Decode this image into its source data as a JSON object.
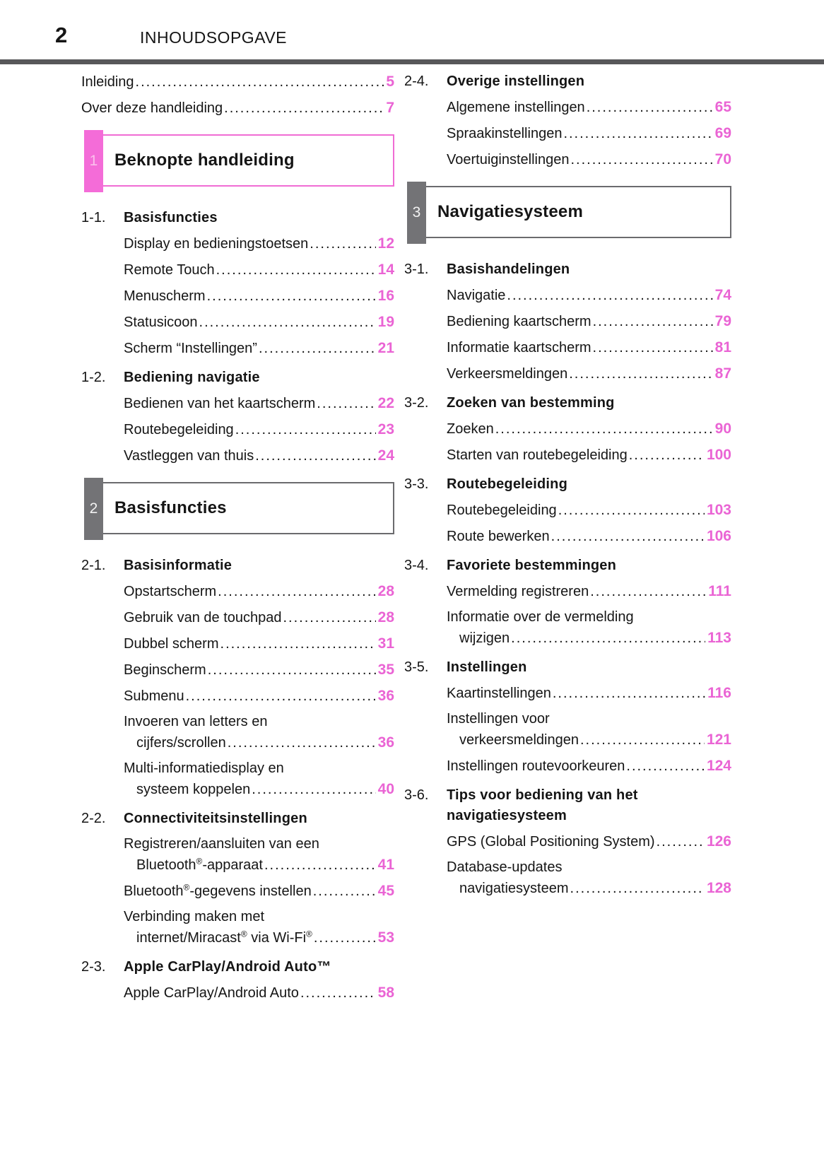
{
  "header": {
    "page_number": "2",
    "title": "INHOUDSOPGAVE"
  },
  "colors": {
    "pink_accent": "#f06cd4",
    "pink_page_number": "#ea64d4",
    "pink_tab_bg": "#f46cd8",
    "pink_tab_number": "#fbc0ec",
    "gray_tab_bg": "#737376",
    "gray_box_border": "#6b6b6e",
    "header_rule": "#58585a",
    "text": "#151515"
  },
  "toc": {
    "left": [
      {
        "kind": "entry",
        "indent": 0,
        "lines": [
          "Inleiding"
        ],
        "page": "5"
      },
      {
        "kind": "entry",
        "indent": 0,
        "lines": [
          "Over deze handleiding"
        ],
        "page": "7"
      },
      {
        "kind": "section",
        "num": "1",
        "title": "Beknopte handleiding",
        "variant": "pink"
      },
      {
        "kind": "sub",
        "num": "1-1.",
        "title": "Basisfuncties"
      },
      {
        "kind": "entry",
        "lines": [
          "Display en bedieningstoetsen"
        ],
        "page": "12"
      },
      {
        "kind": "entry",
        "lines": [
          "Remote Touch"
        ],
        "page": "14"
      },
      {
        "kind": "entry",
        "lines": [
          "Menuscherm"
        ],
        "page": "16"
      },
      {
        "kind": "entry",
        "lines": [
          "Statusicoon"
        ],
        "page": "19"
      },
      {
        "kind": "entry",
        "lines": [
          "Scherm “Instellingen”"
        ],
        "page": "21"
      },
      {
        "kind": "sub",
        "num": "1-2.",
        "title": "Bediening navigatie"
      },
      {
        "kind": "entry",
        "lines": [
          "Bedienen van het kaartscherm"
        ],
        "page": "22"
      },
      {
        "kind": "entry",
        "lines": [
          "Routebegeleiding"
        ],
        "page": "23"
      },
      {
        "kind": "entry",
        "lines": [
          "Vastleggen van thuis"
        ],
        "page": "24"
      },
      {
        "kind": "section",
        "num": "2",
        "title": "Basisfuncties",
        "variant": "gray"
      },
      {
        "kind": "sub",
        "num": "2-1.",
        "title": "Basisinformatie"
      },
      {
        "kind": "entry",
        "lines": [
          "Opstartscherm"
        ],
        "page": "28"
      },
      {
        "kind": "entry",
        "lines": [
          "Gebruik van de touchpad"
        ],
        "page": "28"
      },
      {
        "kind": "entry",
        "lines": [
          "Dubbel scherm"
        ],
        "page": "31"
      },
      {
        "kind": "entry",
        "lines": [
          "Beginscherm"
        ],
        "page": "35"
      },
      {
        "kind": "entry",
        "lines": [
          "Submenu"
        ],
        "page": "36"
      },
      {
        "kind": "entry",
        "lines": [
          "Invoeren van letters en",
          "cijfers/scrollen"
        ],
        "page": "36"
      },
      {
        "kind": "entry",
        "lines": [
          "Multi-informatiedisplay en",
          "systeem koppelen"
        ],
        "page": "40"
      },
      {
        "kind": "sub",
        "num": "2-2.",
        "title": "Connectiviteitsinstellingen"
      },
      {
        "kind": "entry",
        "lines": [
          "Registreren/aansluiten van een",
          "Bluetooth®-apparaat"
        ],
        "page": "41"
      },
      {
        "kind": "entry",
        "lines": [
          "Bluetooth®-gegevens instellen"
        ],
        "page": "45"
      },
      {
        "kind": "entry",
        "lines": [
          "Verbinding maken met",
          "internet/Miracast® via Wi-Fi®"
        ],
        "page": "53"
      },
      {
        "kind": "sub",
        "num": "2-3.",
        "title": "Apple CarPlay/Android Auto™"
      },
      {
        "kind": "entry",
        "lines": [
          "Apple CarPlay/Android Auto"
        ],
        "page": "58"
      }
    ],
    "right": [
      {
        "kind": "sub",
        "num": "2-4.",
        "title": "Overige instellingen"
      },
      {
        "kind": "entry",
        "lines": [
          "Algemene instellingen"
        ],
        "page": "65"
      },
      {
        "kind": "entry",
        "lines": [
          "Spraakinstellingen"
        ],
        "page": "69"
      },
      {
        "kind": "entry",
        "lines": [
          "Voertuiginstellingen"
        ],
        "page": "70"
      },
      {
        "kind": "section",
        "num": "3",
        "title": "Navigatiesysteem",
        "variant": "gray"
      },
      {
        "kind": "sub",
        "num": "3-1.",
        "title": "Basishandelingen"
      },
      {
        "kind": "entry",
        "lines": [
          "Navigatie"
        ],
        "page": "74"
      },
      {
        "kind": "entry",
        "lines": [
          "Bediening kaartscherm"
        ],
        "page": "79"
      },
      {
        "kind": "entry",
        "lines": [
          "Informatie kaartscherm"
        ],
        "page": "81"
      },
      {
        "kind": "entry",
        "lines": [
          "Verkeersmeldingen"
        ],
        "page": "87"
      },
      {
        "kind": "sub",
        "num": "3-2.",
        "title": "Zoeken van bestemming"
      },
      {
        "kind": "entry",
        "lines": [
          "Zoeken"
        ],
        "page": "90"
      },
      {
        "kind": "entry",
        "lines": [
          "Starten van routebegeleiding"
        ],
        "page": "100"
      },
      {
        "kind": "sub",
        "num": "3-3.",
        "title": "Routebegeleiding"
      },
      {
        "kind": "entry",
        "lines": [
          "Routebegeleiding"
        ],
        "page": "103"
      },
      {
        "kind": "entry",
        "lines": [
          "Route bewerken"
        ],
        "page": "106"
      },
      {
        "kind": "sub",
        "num": "3-4.",
        "title": "Favoriete bestemmingen"
      },
      {
        "kind": "entry",
        "lines": [
          "Vermelding registreren"
        ],
        "page": "111"
      },
      {
        "kind": "entry",
        "lines": [
          "Informatie over de vermelding",
          "wijzigen"
        ],
        "page": "113"
      },
      {
        "kind": "sub",
        "num": "3-5.",
        "title": "Instellingen"
      },
      {
        "kind": "entry",
        "lines": [
          "Kaartinstellingen"
        ],
        "page": "116"
      },
      {
        "kind": "entry",
        "lines": [
          "Instellingen voor",
          "verkeersmeldingen"
        ],
        "page": "121"
      },
      {
        "kind": "entry",
        "lines": [
          "Instellingen routevoorkeuren"
        ],
        "page": "124"
      },
      {
        "kind": "sub",
        "num": "3-6.",
        "title_lines": [
          "Tips voor bediening van het",
          "navigatiesysteem"
        ]
      },
      {
        "kind": "entry",
        "lines": [
          "GPS (Global Positioning System)"
        ],
        "page": "126"
      },
      {
        "kind": "entry",
        "lines": [
          "Database-updates",
          "navigatiesysteem"
        ],
        "page": "128"
      }
    ]
  }
}
